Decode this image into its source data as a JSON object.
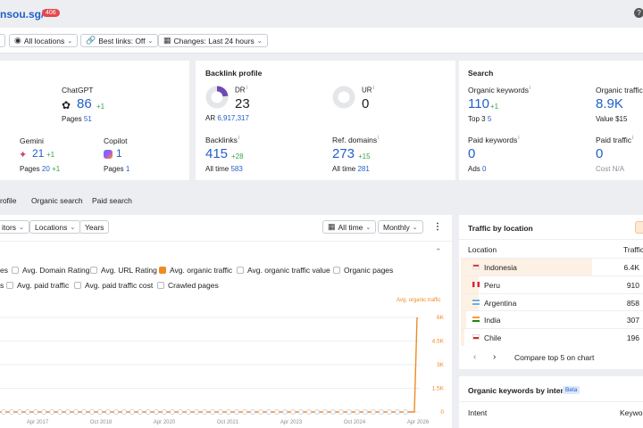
{
  "header": {
    "domain": "nsou.sg/",
    "badge": "406",
    "help_icon": "question-icon"
  },
  "toolbar": {
    "locations": "All locations",
    "best_links": "Best links: Off",
    "changes": "Changes: Last 24 hours"
  },
  "ai_card": {
    "chatgpt_label": "ChatGPT",
    "chatgpt_value": "86",
    "chatgpt_delta": "+1",
    "chatgpt_pages_label": "Pages",
    "chatgpt_pages": "51",
    "gemini_label": "Gemini",
    "gemini_value": "21",
    "gemini_delta": "+1",
    "gemini_pages_label": "Pages",
    "gemini_pages": "20",
    "gemini_pages_delta": "+1",
    "copilot_label": "Copilot",
    "copilot_value": "1",
    "copilot_pages_label": "Pages",
    "copilot_pages": "1"
  },
  "backlink": {
    "title": "Backlink profile",
    "dr_label": "DR",
    "dr_value": "23",
    "dr_fraction": 0.23,
    "ar_label": "AR",
    "ar_value": "6,917,317",
    "ur_label": "UR",
    "ur_value": "0",
    "backlinks_label": "Backlinks",
    "backlinks_value": "415",
    "backlinks_delta": "+28",
    "backlinks_alltime_label": "All time",
    "backlinks_alltime": "583",
    "refdomains_label": "Ref. domains",
    "refdomains_value": "273",
    "refdomains_delta": "+15",
    "refdomains_alltime_label": "All time",
    "refdomains_alltime": "281"
  },
  "search": {
    "title": "Search",
    "organic_kw_label": "Organic keywords",
    "organic_kw_value": "110",
    "organic_kw_delta": "+1",
    "top3_label": "Top 3",
    "top3_value": "5",
    "organic_traffic_label": "Organic traffic",
    "organic_traffic_value": "8.9K",
    "value_label": "Value",
    "value_value": "$15",
    "paid_kw_label": "Paid keywords",
    "paid_kw_value": "0",
    "ads_label": "Ads",
    "ads_value": "0",
    "paid_traffic_label": "Paid traffic",
    "paid_traffic_value": "0",
    "cost_label": "Cost",
    "cost_value": "N/A"
  },
  "tabs": [
    "rofile",
    "Organic search",
    "Paid search"
  ],
  "chart_controls": {
    "competitors": "itors",
    "locations": "Locations",
    "years": "Years",
    "all_time": "All time",
    "monthly": "Monthly"
  },
  "checkboxes": {
    "row1": [
      {
        "label": "es",
        "checked": false,
        "partial": true
      },
      {
        "label": "Avg. Domain Rating",
        "checked": false
      },
      {
        "label": "Avg. URL Rating",
        "checked": false
      },
      {
        "label": "Avg. organic traffic",
        "checked": true
      },
      {
        "label": "Avg. organic traffic value",
        "checked": false
      },
      {
        "label": "Organic pages",
        "checked": false
      }
    ],
    "row2": [
      {
        "label": "s",
        "checked": false,
        "partial": true
      },
      {
        "label": "Avg. paid traffic",
        "checked": false
      },
      {
        "label": "Avg. paid traffic cost",
        "checked": false
      },
      {
        "label": "Crawled pages",
        "checked": false
      }
    ]
  },
  "chart_data": {
    "type": "line",
    "series": [
      {
        "name": "Avg. organic traffic",
        "color": "#f08a24"
      }
    ],
    "x_ticks": [
      "Apr 2017",
      "Oct 2018",
      "Apr 2020",
      "Oct 2021",
      "Apr 2023",
      "Oct 2024",
      "Apr 2026"
    ],
    "y_ticks": [
      "6K",
      "4.5K",
      "3K",
      "1.5K",
      "0"
    ],
    "ylim": [
      0,
      6000
    ],
    "points": [
      {
        "x": "2016-11",
        "y": 0
      },
      {
        "x": "2026-03",
        "y": 0
      },
      {
        "x": "2026-04",
        "y": 6000
      }
    ]
  },
  "traffic_by_location": {
    "title": "Traffic by location",
    "col_location": "Location",
    "col_traffic": "Traffic",
    "rows": [
      {
        "country": "Indonesia",
        "traffic": "6.4K",
        "flag": "flag-indonesia-icon",
        "share": 0.72
      },
      {
        "country": "Peru",
        "traffic": "910",
        "flag": "flag-peru-icon",
        "share": 0.1
      },
      {
        "country": "Argentina",
        "traffic": "858",
        "flag": "flag-argentina-icon",
        "share": 0.1
      },
      {
        "country": "India",
        "traffic": "307",
        "flag": "flag-india-icon",
        "share": 0.03
      },
      {
        "country": "Chile",
        "traffic": "196",
        "flag": "flag-chile-icon",
        "share": 0.02
      }
    ],
    "compare_label": "Compare top 5 on chart"
  },
  "intent": {
    "title": "Organic keywords by intent",
    "badge": "Beta",
    "col_intent": "Intent",
    "col_keywords": "Keywor"
  },
  "colors": {
    "accent": "#f08a24",
    "link": "#2260c9",
    "positive": "#3aa34a",
    "badge": "#e5484d"
  }
}
